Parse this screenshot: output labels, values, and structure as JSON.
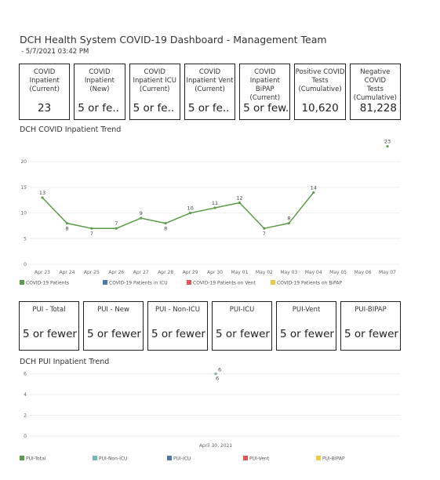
{
  "header": {
    "title": "DCH Health System COVID-19 Dashboard - Management Team",
    "subtitle": "- 5/7/2021 03:42 PM"
  },
  "covid_cards": [
    {
      "label": "COVID\nInpatient\n(Current)",
      "value": 23
    },
    {
      "label": "COVID\nInpatient\n(New)",
      "value": "5 or fe.."
    },
    {
      "label": "COVID\nInpatient ICU\n(Current)",
      "value": "5 or fe.."
    },
    {
      "label": "COVID\nInpatient Vent\n(Current)",
      "value": "5 or fe.."
    },
    {
      "label": "COVID\nInpatient BiPAP\n(Current)",
      "value": "5 or few.."
    },
    {
      "label": "Positive COVID\nTests\n(Cumulative)",
      "value": "10,620"
    },
    {
      "label": "Negative COVID\nTests\n(Cumulative)",
      "value": "81,228"
    }
  ],
  "pui_cards": [
    {
      "label": "PUI - Total",
      "value": "5 or fewer"
    },
    {
      "label": "PUI - New",
      "value": "5 or fewer"
    },
    {
      "label": "PUI - Non-ICU",
      "value": "5 or fewer"
    },
    {
      "label": "PUI-ICU",
      "value": "5 or fewer"
    },
    {
      "label": "PUI-Vent",
      "value": "5 or fewer"
    },
    {
      "label": "PUI-BIPAP",
      "value": "5 or fewer"
    }
  ],
  "chart_data": [
    {
      "type": "line",
      "title": "DCH COVID Inpatient Trend",
      "categories": [
        "Apr 23",
        "Apr 24",
        "Apr 25",
        "Apr 26",
        "Apr 27",
        "Apr 28",
        "Apr 29",
        "Apr 30",
        "May 01",
        "May 02",
        "May 03",
        "May 04",
        "May 05",
        "May 06",
        "May 07"
      ],
      "series": [
        {
          "name": "COVID-19 Patients",
          "color": "#5b9d4a",
          "values": [
            13,
            8,
            7,
            7,
            9,
            8,
            10,
            11,
            12,
            7,
            8,
            14,
            null,
            null,
            23
          ]
        },
        {
          "name": "COVID-19 Patients in ICU",
          "color": "#4e79a7",
          "values": [
            null,
            null,
            null,
            null,
            null,
            null,
            null,
            null,
            null,
            null,
            null,
            null,
            null,
            null,
            null
          ]
        },
        {
          "name": "COVID-19 Patients on Vent",
          "color": "#e15759",
          "values": [
            null,
            null,
            null,
            null,
            null,
            null,
            null,
            null,
            null,
            null,
            null,
            null,
            null,
            null,
            null
          ]
        },
        {
          "name": "COVID-19 Patients on BiPAP",
          "color": "#edc948",
          "values": [
            null,
            null,
            null,
            null,
            null,
            null,
            null,
            null,
            null,
            null,
            null,
            null,
            null,
            null,
            null
          ]
        }
      ],
      "ylim": [
        0,
        24
      ],
      "yticks": [
        0,
        5,
        10,
        15,
        20
      ],
      "grid": true
    },
    {
      "type": "line",
      "title": "DCH PUI Inpatient Trend",
      "categories": [
        "April 30, 2021"
      ],
      "series": [
        {
          "name": "PUI-Total",
          "color": "#5b9d4a",
          "values": [
            6
          ]
        },
        {
          "name": "PUI-Non-ICU",
          "color": "#76b7b2",
          "values": [
            6
          ]
        },
        {
          "name": "PUI-ICU",
          "color": "#4e79a7",
          "values": [
            null
          ]
        },
        {
          "name": "PUI-Vent",
          "color": "#e15759",
          "values": [
            null
          ]
        },
        {
          "name": "PUI-BIPAP",
          "color": "#edc948",
          "values": [
            null
          ]
        }
      ],
      "ylim": [
        0,
        6.5
      ],
      "yticks": [
        0,
        2,
        4,
        6
      ],
      "grid": true
    }
  ]
}
